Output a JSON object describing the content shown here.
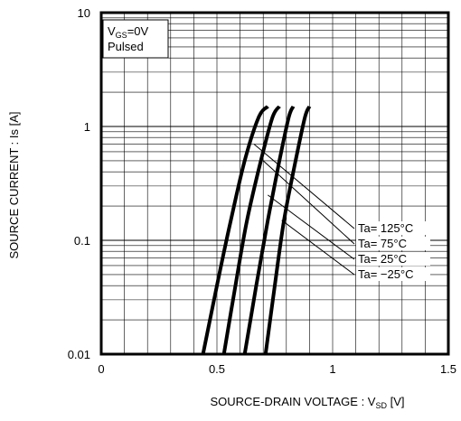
{
  "chart_data": {
    "type": "line",
    "x_scale": "linear",
    "y_scale": "log",
    "xlim": [
      0,
      1.5
    ],
    "ylim": [
      0.01,
      10
    ],
    "grid": true,
    "x_ticks": [
      "0",
      "0.5",
      "1",
      "1.5"
    ],
    "y_ticks": [
      "0.01",
      "0.1",
      "1",
      "10"
    ],
    "xlabel": {
      "main": "SOURCE-DRAIN VOLTAGE : V",
      "sub": "SD",
      "unit": " [V]"
    },
    "ylabel": "SOURCE CURRENT : Is [A]",
    "conditions": {
      "line1_main": "V",
      "line1_sub": "GS",
      "line1_rest": "=0V",
      "line2": "Pulsed"
    },
    "series": [
      {
        "name": "Ta= 125°C",
        "points": [
          [
            0.44,
            0.01
          ],
          [
            0.5,
            0.04
          ],
          [
            0.56,
            0.15
          ],
          [
            0.62,
            0.5
          ],
          [
            0.68,
            1.2
          ],
          [
            0.72,
            1.5
          ]
        ]
      },
      {
        "name": "Ta= 75°C",
        "points": [
          [
            0.53,
            0.01
          ],
          [
            0.58,
            0.04
          ],
          [
            0.63,
            0.15
          ],
          [
            0.69,
            0.5
          ],
          [
            0.74,
            1.2
          ],
          [
            0.77,
            1.5
          ]
        ]
      },
      {
        "name": "Ta= 25°C",
        "points": [
          [
            0.62,
            0.01
          ],
          [
            0.67,
            0.04
          ],
          [
            0.72,
            0.15
          ],
          [
            0.77,
            0.5
          ],
          [
            0.81,
            1.2
          ],
          [
            0.83,
            1.5
          ]
        ]
      },
      {
        "name": "Ta= −25°C",
        "points": [
          [
            0.71,
            0.01
          ],
          [
            0.75,
            0.04
          ],
          [
            0.79,
            0.15
          ],
          [
            0.84,
            0.5
          ],
          [
            0.88,
            1.2
          ],
          [
            0.9,
            1.5
          ]
        ]
      }
    ],
    "annotation_anchors": [
      [
        0.66,
        0.7
      ],
      [
        0.7,
        0.5
      ],
      [
        0.72,
        0.25
      ],
      [
        0.78,
        0.15
      ]
    ]
  }
}
